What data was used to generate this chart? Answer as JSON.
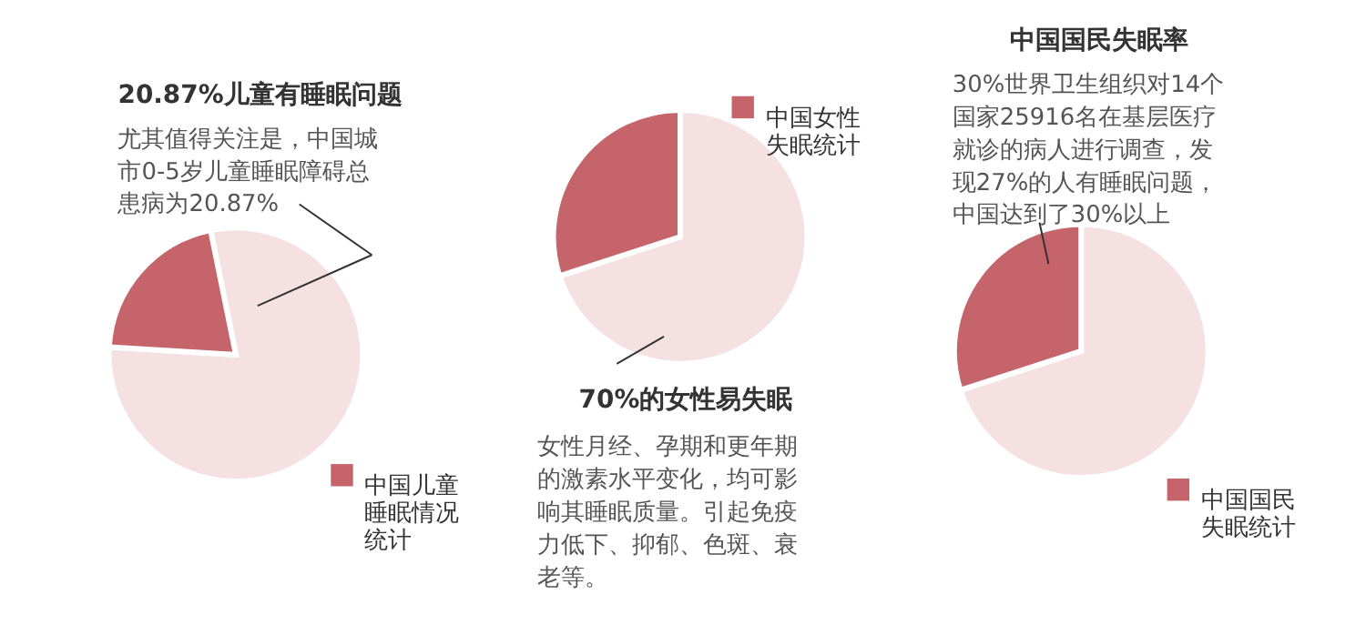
{
  "chart_data": [
    {
      "type": "pie",
      "title": "20.87%儿童有睡眠问题",
      "subtitle": "尤其值得关注是，中国城市0-5岁儿童睡眠障碍总患病为20.87%",
      "categories": [
        null,
        "中国儿童睡眠情况统计"
      ],
      "values": [
        79.13,
        20.87
      ],
      "colors": [
        "#f5e0e2",
        "#c5656b"
      ],
      "legend": "bottom right"
    },
    {
      "type": "pie",
      "title": "70%的女性易失眠",
      "subtitle": "女性月经、孕期和更年期的激素水平变化，均可影响其睡眠质量。引起免疫力低下、抑郁、色斑、衰老等。",
      "categories": [
        null,
        "中国女性失眠统计"
      ],
      "values": [
        70,
        30
      ],
      "colors": [
        "#f5e0e2",
        "#c5656b"
      ],
      "legend": "top right"
    },
    {
      "type": "pie",
      "title": "中国国民失眠率",
      "subtitle": "30%世界卫生组织对14个国家25916名在基层医疗就诊的病人进行调查，发现27%的人有睡眠问题，中国达到了30%以上",
      "categories": [
        null,
        "中国国民失眠统计"
      ],
      "values": [
        70,
        30
      ],
      "colors": [
        "#f5e0e2",
        "#c5656b"
      ],
      "legend": "bottom right"
    }
  ]
}
